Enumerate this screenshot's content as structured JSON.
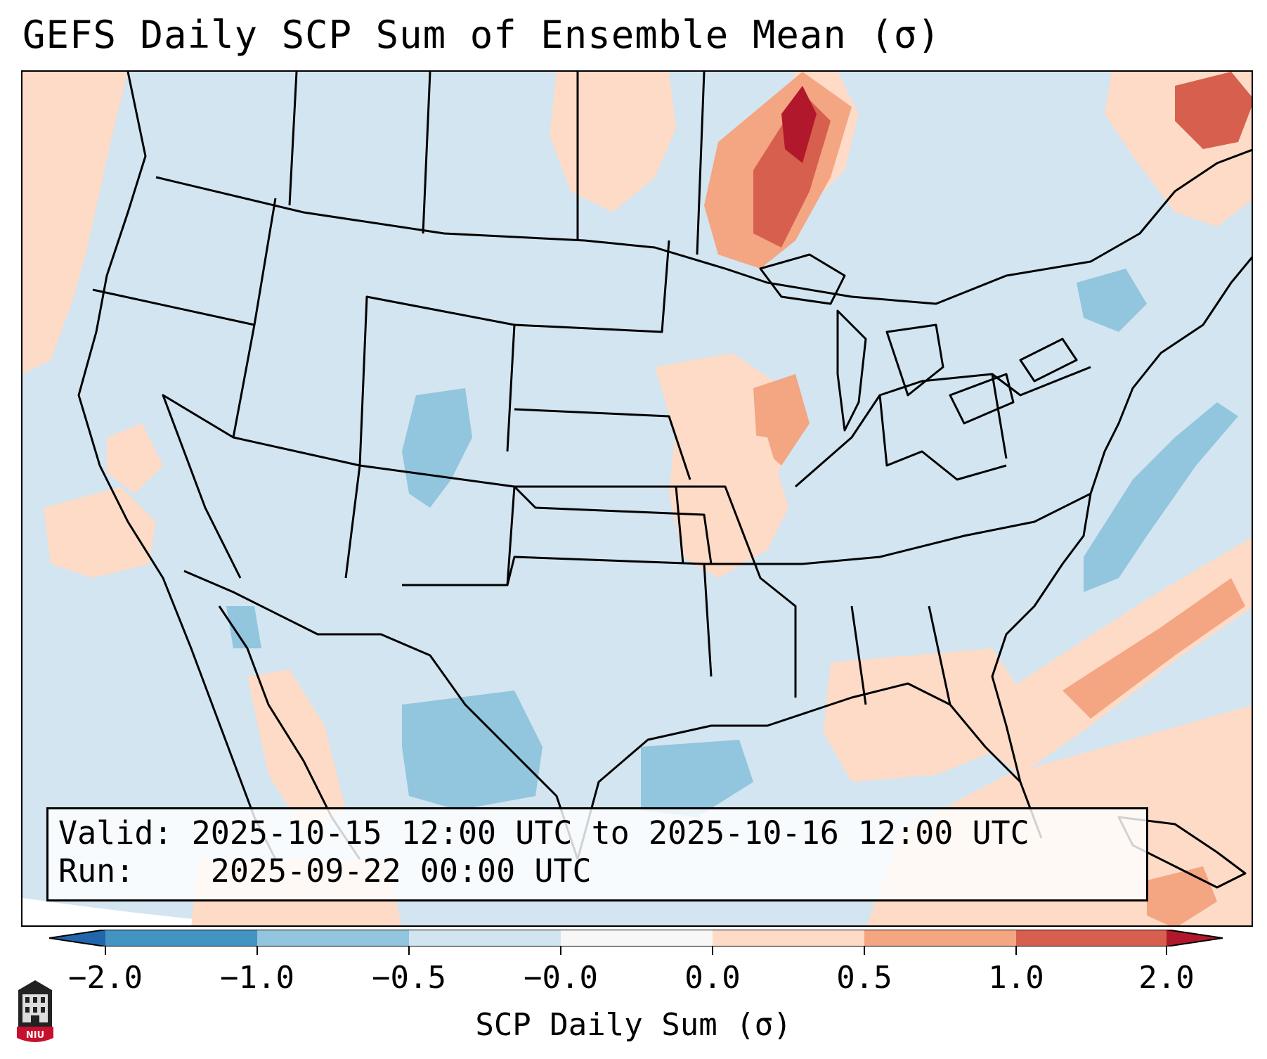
{
  "header": {
    "title": "GEFS Daily SCP Sum of Ensemble Mean (σ)"
  },
  "info": {
    "valid_label": "Valid:",
    "valid_value": "2025-10-15 12:00 UTC to 2025-10-16 12:00 UTC",
    "run_label": "Run:",
    "run_value": "2025-09-22 00:00 UTC"
  },
  "colorbar": {
    "title": "SCP Daily Sum (σ)",
    "tick_labels": [
      "−2.0",
      "−1.0",
      "−0.5",
      "−0.0",
      "0.0",
      "0.5",
      "1.0",
      "2.0"
    ],
    "colors": [
      "#4393c3",
      "#92c5de",
      "#d1e5f0",
      "#f7f7f7",
      "#fddbc7",
      "#f4a582",
      "#d6604d"
    ],
    "extend_low_color": "#2166ac",
    "extend_high_color": "#b2182b"
  },
  "map": {
    "projection": "Lambert Conformal, CONUS",
    "background_color": "#d2e5f0",
    "region_colors": {
      "light_orange": "#fddbc7",
      "orange": "#f4a582",
      "red": "#d6604d",
      "dark_red": "#b2182b",
      "light_blue": "#92c5de"
    }
  },
  "logo": {
    "text": "NIU",
    "primary_color": "#c8102e"
  }
}
